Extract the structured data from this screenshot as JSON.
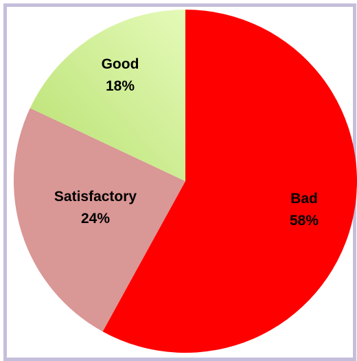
{
  "chart_data": {
    "type": "pie",
    "title": "",
    "slices": [
      {
        "label": "Bad",
        "value": 58,
        "display": "58%",
        "color": "#ff0000"
      },
      {
        "label": "Satisfactory",
        "value": 24,
        "display": "24%",
        "color": "#d99795"
      },
      {
        "label": "Good",
        "value": 18,
        "display": "18%",
        "color": "#d6f59d",
        "gradient_end": "#b8e070"
      }
    ],
    "start": "top",
    "direction": "clockwise",
    "legend": "none",
    "frame_color": "#c5bedb"
  }
}
